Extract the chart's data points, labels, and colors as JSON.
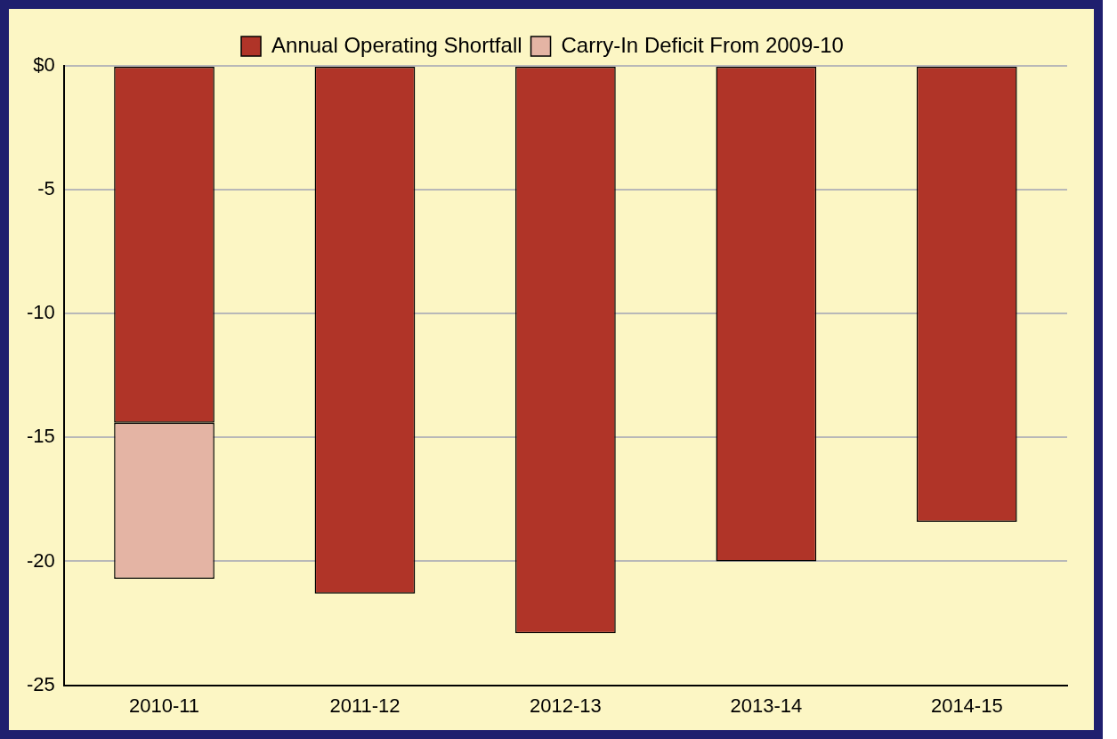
{
  "chart_data": {
    "type": "bar",
    "stacked": true,
    "categories": [
      "2010-11",
      "2011-12",
      "2012-13",
      "2013-14",
      "2014-15"
    ],
    "series": [
      {
        "name": "Annual Operating Shortfall",
        "color": "#b03428",
        "values": [
          -14.4,
          -21.3,
          -22.9,
          -20.0,
          -18.4
        ]
      },
      {
        "name": "Carry-In Deficit From 2009-10",
        "color": "#e4b4a4",
        "values": [
          -6.3,
          null,
          null,
          null,
          null
        ]
      }
    ],
    "ylim": [
      -25,
      0
    ],
    "yticks": [
      {
        "value": 0,
        "label": "$0"
      },
      -5,
      -10,
      -15,
      -20,
      -25
    ],
    "grid": "y",
    "legend": "top"
  }
}
